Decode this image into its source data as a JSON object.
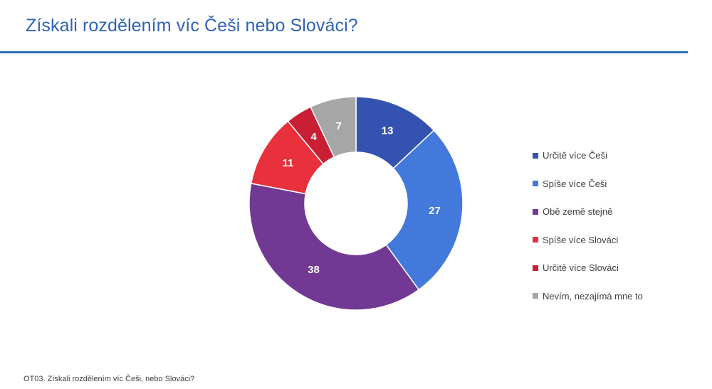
{
  "slide": {
    "title": "Získali rozdělením víc Češi nebo Slováci?",
    "footnote": "OT03. Získali rozdělením víc Češi, nebo Slováci?"
  },
  "colors": {
    "title": "#2e63b5",
    "rule": "#2f6fb3"
  },
  "chart_data": {
    "type": "pie",
    "variant": "donut",
    "title": "",
    "categories": [
      "Určitě více Češi",
      "Spíše více Češi",
      "Obě země stejně",
      "Spíše více Slováci",
      "Určitě více Slováci",
      "Nevím, nezajímá mne to"
    ],
    "values": [
      13,
      27,
      38,
      11,
      4,
      7
    ],
    "colors": [
      "#3452b0",
      "#4379db",
      "#713993",
      "#e8313c",
      "#c81f35",
      "#a6a6a6"
    ],
    "legend_position": "right"
  }
}
